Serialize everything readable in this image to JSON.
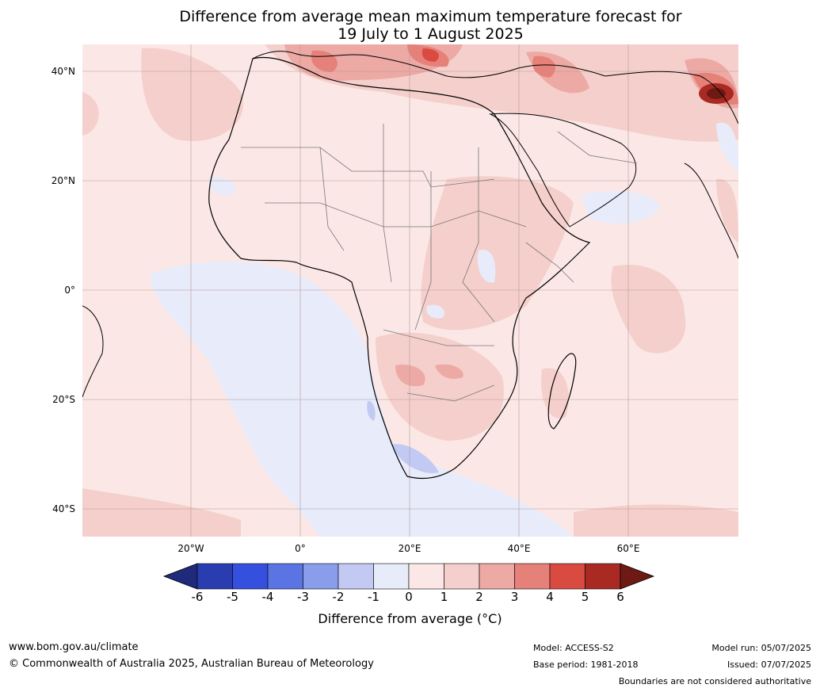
{
  "title": {
    "line1": "Difference from average mean maximum temperature forecast for",
    "line2": "19 July to 1 August 2025"
  },
  "map": {
    "lat_labels": [
      "40°N",
      "20°N",
      "0°",
      "20°S",
      "40°S"
    ],
    "lon_labels": [
      "20°W",
      "0°",
      "20°E",
      "40°E",
      "60°E"
    ]
  },
  "colorbar": {
    "ticks": [
      "-6",
      "-5",
      "-4",
      "-3",
      "-2",
      "-1",
      "0",
      "1",
      "2",
      "3",
      "4",
      "5",
      "6"
    ],
    "label": "Difference from average (",
    "unit_symbol": "°C",
    "label_end": ")",
    "colors": [
      "#1f2a7a",
      "#2a3db0",
      "#3550de",
      "#5a74e4",
      "#8a9deb",
      "#c2c9f2",
      "#e7ebfa",
      "#fbe8e6",
      "#f5cfcb",
      "#eda9a4",
      "#e6817a",
      "#d94a40",
      "#a82a22",
      "#6e1a14"
    ]
  },
  "footer": {
    "url": "www.bom.gov.au/climate",
    "copyright": "© Commonwealth of Australia 2025, Australian Bureau of Meteorology",
    "model": "Model: ACCESS-S2",
    "base_period": "Base period: 1981-2018",
    "model_run": "Model run: 05/07/2025",
    "issued": "Issued: 07/07/2025",
    "disclaimer": "Boundaries are not considered authoritative"
  }
}
